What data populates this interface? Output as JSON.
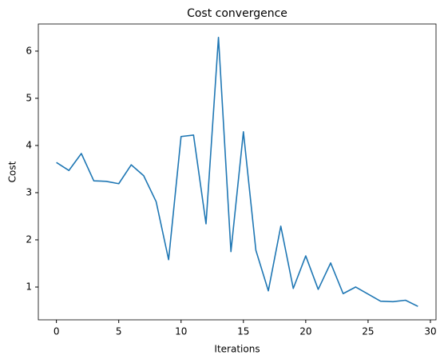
{
  "chart_data": {
    "type": "line",
    "title": "Cost convergence",
    "x_label": "Iterations",
    "y_label": "Cost",
    "x": [
      0,
      1,
      2,
      3,
      4,
      5,
      6,
      7,
      8,
      9,
      10,
      11,
      12,
      13,
      14,
      15,
      16,
      17,
      18,
      19,
      20,
      21,
      22,
      23,
      24,
      25,
      26,
      27,
      28,
      29
    ],
    "series": [
      {
        "color": "#1f77b4",
        "values": [
          3.64,
          3.47,
          3.83,
          3.25,
          3.24,
          3.19,
          3.59,
          3.36,
          2.81,
          1.58,
          4.19,
          4.22,
          2.34,
          6.29,
          1.75,
          4.29,
          1.78,
          0.92,
          2.29,
          0.97,
          1.66,
          0.95,
          1.51,
          0.86,
          1.0,
          0.85,
          0.7,
          0.69,
          0.72,
          0.59
        ]
      }
    ],
    "xlim": [
      -1.45,
      30.45
    ],
    "xticks": [
      0,
      5,
      10,
      15,
      20,
      25,
      30
    ],
    "ylim": [
      0.305,
      6.575
    ],
    "yticks": [
      1,
      2,
      3,
      4,
      5,
      6
    ]
  }
}
